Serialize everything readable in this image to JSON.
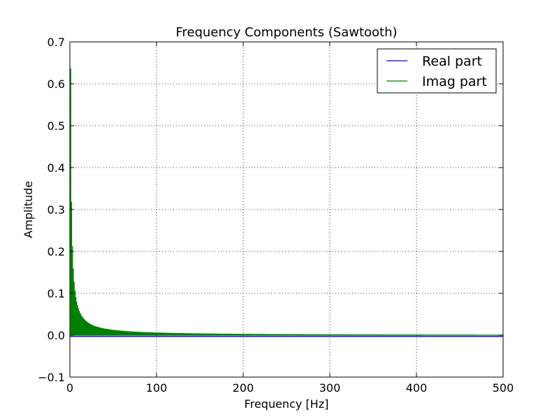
{
  "chart_data": {
    "type": "line",
    "title": "Frequency Components (Sawtooth)",
    "xlabel": "Frequency [Hz]",
    "ylabel": "Amplitude",
    "xlim": [
      0,
      500
    ],
    "ylim": [
      -0.1,
      0.7
    ],
    "x_ticks": [
      0,
      100,
      200,
      300,
      400,
      500
    ],
    "x_tick_labels": [
      "0",
      "100",
      "200",
      "300",
      "400",
      "500"
    ],
    "y_ticks": [
      -0.1,
      0.0,
      0.1,
      0.2,
      0.3,
      0.4,
      0.5,
      0.6,
      0.7
    ],
    "y_tick_labels": [
      "−0.1",
      "0.0",
      "0.1",
      "0.2",
      "0.3",
      "0.4",
      "0.5",
      "0.6",
      "0.7"
    ],
    "grid": true,
    "legend_position": "top-right",
    "harmonic_spacing_hz": 1,
    "series": [
      {
        "name": "Real part",
        "color": "#0000ff",
        "x": [
          0,
          500
        ],
        "values": [
          -0.003,
          -0.003
        ]
      },
      {
        "name": "Imag part",
        "color": "#008000",
        "x": [
          1,
          2,
          3,
          4,
          5,
          10,
          20,
          50,
          100,
          200,
          300,
          400,
          500
        ],
        "values": [
          0.637,
          0.318,
          0.212,
          0.159,
          0.127,
          0.064,
          0.032,
          0.013,
          0.0064,
          0.0032,
          0.0021,
          0.0016,
          0.0013
        ]
      }
    ]
  }
}
